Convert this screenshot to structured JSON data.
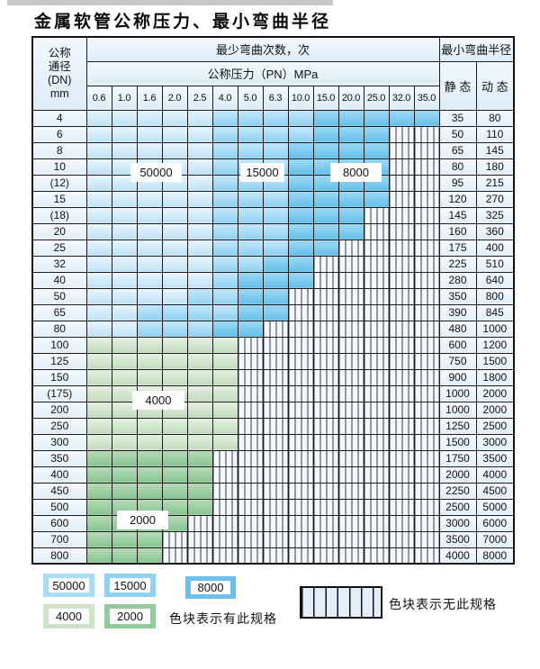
{
  "title": "金属软管公称压力、最小弯曲半径",
  "table": {
    "header": {
      "dn_lines": [
        "公称",
        "通径",
        "(DN)",
        "mm"
      ],
      "cycles_label": "最少弯曲次数，次",
      "radius_label": "最小弯曲半径",
      "pressure_label": "公称压力（PN）MPa",
      "static_label": "静 态",
      "dynamic_label": "动 态",
      "pressures": [
        "0.6",
        "1.0",
        "1.6",
        "2.0",
        "2.5",
        "4.0",
        "5.0",
        "6.3",
        "10.0",
        "15.0",
        "20.0",
        "25.0",
        "32.0",
        "35.0"
      ]
    },
    "cell_legend": {
      "5": "50000",
      "1": "15000",
      "8": "8000",
      "4": "4000",
      "2": "2000",
      "x": "无此规格"
    },
    "rows": [
      {
        "dn": "4",
        "cells": "55555111188888",
        "static": "35",
        "dynamic": "80"
      },
      {
        "dn": "6",
        "cells": "555551111888xx",
        "static": "50",
        "dynamic": "110"
      },
      {
        "dn": "8",
        "cells": "555551118888xx",
        "static": "65",
        "dynamic": "145"
      },
      {
        "dn": "10",
        "cells": "555551118888xx",
        "static": "80",
        "dynamic": "180"
      },
      {
        "dn": "(12)",
        "cells": "555551118888xx",
        "static": "95",
        "dynamic": "215"
      },
      {
        "dn": "15",
        "cells": "555551118888xx",
        "static": "120",
        "dynamic": "270"
      },
      {
        "dn": "(18)",
        "cells": "55555111888xxx",
        "static": "145",
        "dynamic": "325"
      },
      {
        "dn": "20",
        "cells": "55555111888xxx",
        "static": "160",
        "dynamic": "360"
      },
      {
        "dn": "25",
        "cells": "5555511188xxxx",
        "static": "175",
        "dynamic": "400"
      },
      {
        "dn": "32",
        "cells": "555551188xxxxx",
        "static": "225",
        "dynamic": "510"
      },
      {
        "dn": "40",
        "cells": "555551888xxxxx",
        "static": "280",
        "dynamic": "640"
      },
      {
        "dn": "50",
        "cells": "55551188xxxxxx",
        "static": "350",
        "dynamic": "800"
      },
      {
        "dn": "65",
        "cells": "55111188xxxxxx",
        "static": "390",
        "dynamic": "845"
      },
      {
        "dn": "80",
        "cells": "5511188xxxxxxx",
        "static": "480",
        "dynamic": "1000"
      },
      {
        "dn": "100",
        "cells": "444444xxxxxxxx",
        "static": "600",
        "dynamic": "1200"
      },
      {
        "dn": "125",
        "cells": "444444xxxxxxxx",
        "static": "750",
        "dynamic": "1500"
      },
      {
        "dn": "150",
        "cells": "444444xxxxxxxx",
        "static": "900",
        "dynamic": "1800"
      },
      {
        "dn": "(175)",
        "cells": "444444xxxxxxxx",
        "static": "1000",
        "dynamic": "2000"
      },
      {
        "dn": "200",
        "cells": "444444xxxxxxxx",
        "static": "1000",
        "dynamic": "2000"
      },
      {
        "dn": "250",
        "cells": "444444xxxxxxxx",
        "static": "1250",
        "dynamic": "2500"
      },
      {
        "dn": "300",
        "cells": "444444xxxxxxxx",
        "static": "1500",
        "dynamic": "3000"
      },
      {
        "dn": "350",
        "cells": "22222xxxxxxxxx",
        "static": "1750",
        "dynamic": "3500"
      },
      {
        "dn": "400",
        "cells": "22222xxxxxxxxx",
        "static": "2000",
        "dynamic": "4000"
      },
      {
        "dn": "450",
        "cells": "22222xxxxxxxxx",
        "static": "2250",
        "dynamic": "4500"
      },
      {
        "dn": "500",
        "cells": "22222xxxxxxxxx",
        "static": "2500",
        "dynamic": "5000"
      },
      {
        "dn": "600",
        "cells": "2222xxxxxxxxxx",
        "static": "3000",
        "dynamic": "6000"
      },
      {
        "dn": "700",
        "cells": "222xxxxxxxxxxx",
        "static": "3500",
        "dynamic": "7000"
      },
      {
        "dn": "800",
        "cells": "222xxxxxxxxxxx",
        "static": "4000",
        "dynamic": "8000"
      }
    ],
    "region_labels": {
      "o50000": "50000",
      "o15000": "15000",
      "o8000": "8000",
      "o4000": "4000",
      "o2000": "2000"
    }
  },
  "legend": {
    "items": [
      {
        "label": "50000",
        "color": "#a9ddf6"
      },
      {
        "label": "15000",
        "color": "#8fd2f1"
      },
      {
        "label": "8000",
        "color": "#6cc1ea"
      },
      {
        "label": "4000",
        "color": "#cfe3c9"
      },
      {
        "label": "2000",
        "color": "#93cb9c"
      }
    ],
    "available_note": "色块表示有此规格",
    "unavailable_note": "色块表示无此规格"
  },
  "colors": {
    "cycles_50000": "#cfe9f9",
    "cycles_15000": "#9ed8f3",
    "cycles_8000": "#72c5ec",
    "cycles_4000": "#d7e7d2",
    "cycles_2000": "#97cc9f",
    "grid_line": "#1c1c1c",
    "header_fill": "#e6f1f9"
  }
}
